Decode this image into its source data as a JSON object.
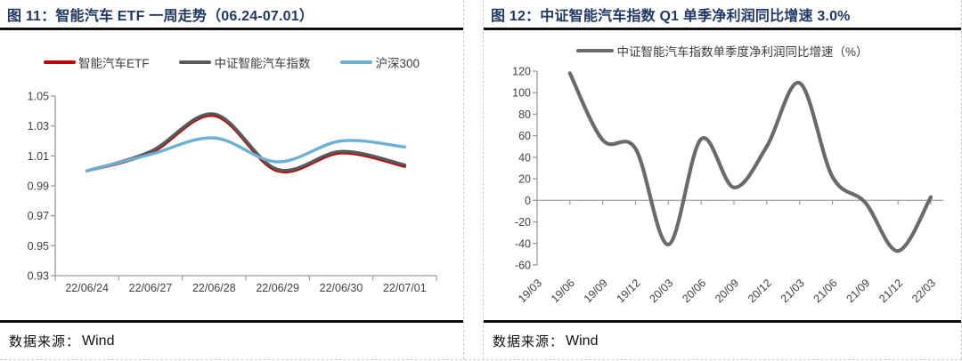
{
  "panels": [
    {
      "title": "图 11：智能汽车 ETF 一周走势（06.24-07.01）",
      "source_label": "数据来源：",
      "source_value": "Wind"
    },
    {
      "title": "图 12：中证智能汽车指数 Q1 单季净利润同比增速 3.0%",
      "source_label": "数据来源：",
      "source_value": "Wind"
    }
  ],
  "chart_data": [
    {
      "type": "line",
      "title": "智能汽车 ETF 一周走势（06.24-07.01）",
      "categories": [
        "22/06/24",
        "22/06/27",
        "22/06/28",
        "22/06/29",
        "22/06/30",
        "22/07/01"
      ],
      "series": [
        {
          "name": "智能汽车ETF",
          "color": "#C00000",
          "values": [
            1.0,
            1.012,
            1.037,
            1.0,
            1.012,
            1.003
          ]
        },
        {
          "name": "中证智能汽车指数",
          "color": "#595959",
          "values": [
            1.0,
            1.013,
            1.038,
            1.001,
            1.013,
            1.004
          ]
        },
        {
          "name": "沪深300",
          "color": "#6CB1D3",
          "values": [
            1.0,
            1.011,
            1.022,
            1.006,
            1.02,
            1.016
          ]
        }
      ],
      "xlabel": "",
      "ylabel": "",
      "ylim": [
        0.93,
        1.05
      ],
      "ytick_step": 0.02,
      "grid": false,
      "legend_position": "top",
      "smooth": true
    },
    {
      "type": "line",
      "title": "中证智能汽车指数 Q1 单季净利润同比增速 3.0%",
      "categories": [
        "19/03",
        "19/06",
        "19/09",
        "19/12",
        "20/03",
        "20/06",
        "20/09",
        "20/12",
        "21/03",
        "21/06",
        "21/09",
        "21/12",
        "22/03"
      ],
      "series": [
        {
          "name": "中证智能汽车指数单季度净利润同比增速（%）",
          "color": "#6A6A6A",
          "values": [
            null,
            118,
            56,
            48,
            -41,
            57,
            12,
            50,
            109,
            22,
            -2,
            -47,
            3
          ]
        }
      ],
      "xlabel": "",
      "ylabel": "",
      "ylim": [
        -60,
        120
      ],
      "ytick_step": 20,
      "zero_line": true,
      "x_labels_rotated": true,
      "grid": false,
      "legend_position": "top",
      "smooth": true
    }
  ]
}
